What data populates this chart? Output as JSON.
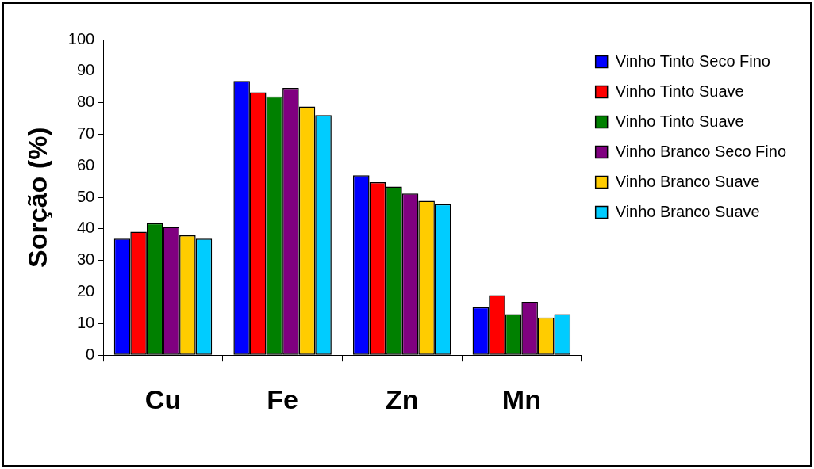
{
  "chart_data": {
    "type": "bar",
    "ylabel": "Sorção (%)",
    "categories": [
      "Cu",
      "Fe",
      "Zn",
      "Mn"
    ],
    "series": [
      {
        "name": "Vinho Tinto Seco Fino",
        "color": "#0000ff",
        "values": [
          36.9,
          86.9,
          57,
          15.2
        ]
      },
      {
        "name": "Vinho Tinto Suave",
        "color": "#ff0000",
        "values": [
          39.1,
          83.3,
          54.8,
          19
        ]
      },
      {
        "name": "Vinho Tinto Suave",
        "color": "#008000",
        "values": [
          41.8,
          82,
          53.4,
          13
        ]
      },
      {
        "name": "Vinho Branco Seco Fino",
        "color": "#800080",
        "values": [
          40.6,
          84.7,
          51.2,
          16.9
        ]
      },
      {
        "name": "Vinho Branco Suave",
        "color": "#ffcc00",
        "values": [
          38,
          78.8,
          48.9,
          11.9
        ]
      },
      {
        "name": "Vinho Branco Suave",
        "color": "#00ccff",
        "values": [
          36.9,
          76.1,
          47.8,
          13
        ]
      }
    ],
    "ylim": [
      0,
      100
    ],
    "yticks": [
      0,
      10,
      20,
      30,
      40,
      50,
      60,
      70,
      80,
      90,
      100
    ],
    "grid": false,
    "legend": "top right"
  }
}
